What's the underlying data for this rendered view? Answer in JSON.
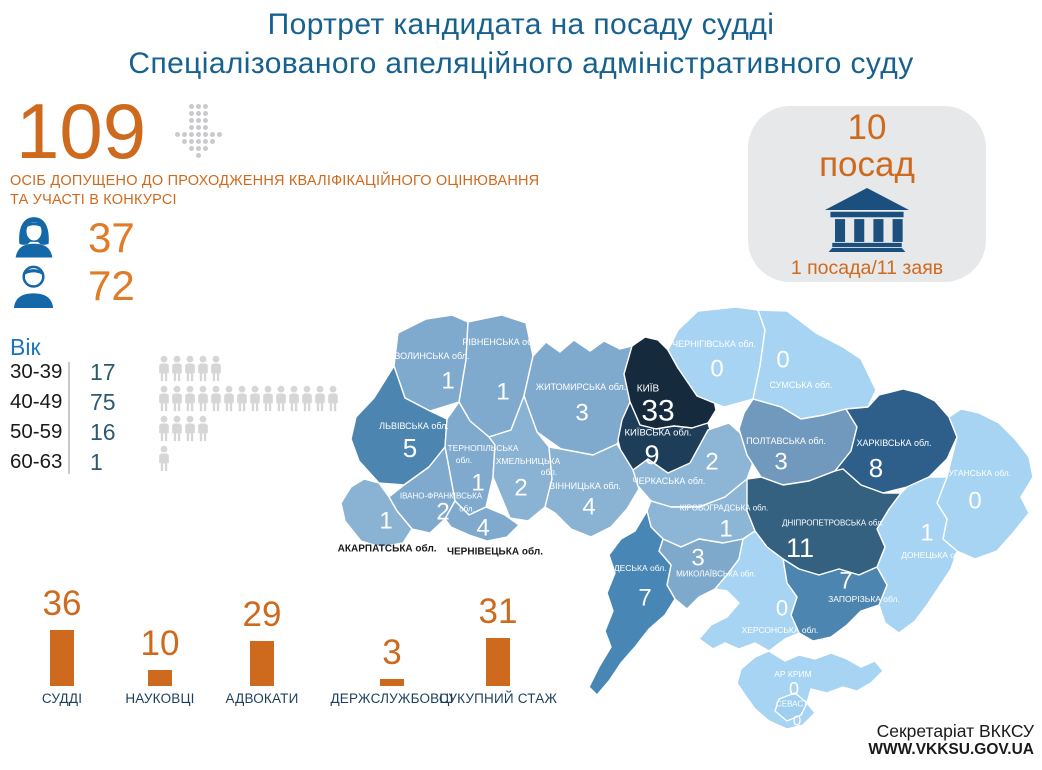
{
  "title": {
    "line1": "Портрет кандидата на посаду судді",
    "line2": "Спеціалізованого апеляційного адміністративного суду"
  },
  "admitted": {
    "count": "109",
    "caption_line1": "ОСІБ ДОПУЩЕНО ДО ПРОХОДЖЕННЯ КВАЛІФІКАЦІЙНОГО ОЦІНЮВАННЯ",
    "caption_line2": "ТА УЧАСТІ В КОНКУРСІ"
  },
  "gender": {
    "female": "37",
    "male": "72",
    "female_icon": "woman-icon",
    "male_icon": "man-icon"
  },
  "age": {
    "label": "Вік"
  },
  "positions_box": {
    "number": "10",
    "word": "посад",
    "icon": "courthouse-icon",
    "ratio": "1 посада/11 заяв"
  },
  "footer": {
    "line1": "Секретаріат ВККСУ",
    "line2": "WWW.VKKSU.GOV.UA"
  },
  "colors": {
    "accent_orange": "#CE6A1E",
    "title_blue": "#17618F",
    "icon_blue": "#1568A8",
    "building_navy": "#1B4F7D",
    "age_value": "#2E5A70",
    "age_heading_blue": "#1C75BC",
    "bar_label_navy": "#1C3F5E",
    "pictogram_gray": "#D6D6D6",
    "box_bg": "#E7E8EA"
  },
  "chart_data": [
    {
      "type": "bar",
      "title": "",
      "categories": [
        "СУДДІ",
        "НАУКОВЦІ",
        "АДВОКАТИ",
        "ДЕРЖСЛУЖБОВЦІ",
        "СУКУПНИЙ СТАЖ"
      ],
      "values": [
        36,
        10,
        29,
        3,
        31
      ],
      "bar_color": "#CE6A1E",
      "value_labels_shown": true,
      "grid": false,
      "legend": false
    },
    {
      "type": "heatmap",
      "subtype": "choropleth-map-ukraine",
      "title": "",
      "regions": [
        {
          "id": "volyn",
          "name": "ВОЛИНСЬКА обл.",
          "value": "1",
          "color": "#7FAACD"
        },
        {
          "id": "rivne",
          "name": "РІВНЕНСЬКА обл.",
          "value": "1",
          "color": "#7FAACD"
        },
        {
          "id": "zhytomyr",
          "name": "ЖИТОМИРСЬКА обл.",
          "value": "3",
          "color": "#7FAACD"
        },
        {
          "id": "kyivCity",
          "name": "КИЇВ",
          "value": "33",
          "color": "#162A3D"
        },
        {
          "id": "kyivObl",
          "name": "КИЇВСЬКА обл.",
          "value": "9",
          "color": "#1E3D58"
        },
        {
          "id": "chernihiv",
          "name": "ЧЕРНІГІВСЬКА обл.",
          "value": "0",
          "color": "#A7D4F2"
        },
        {
          "id": "sumy",
          "name": "СУМСЬКА обл.",
          "value": "0",
          "color": "#A7D4F2"
        },
        {
          "id": "lviv",
          "name": "ЛЬВІВСЬКА обл.",
          "value": "5",
          "color": "#4C86B0"
        },
        {
          "id": "ternopil",
          "name": "ТЕРНОПІЛЬСЬКА",
          "name2": "обл.",
          "value": "1",
          "color": "#7FAACD"
        },
        {
          "id": "khmelnytskyi",
          "name": "ХМЕЛЬНИЦЬКА",
          "name2": "обл.",
          "value": "2",
          "color": "#89B2D3"
        },
        {
          "id": "ivano",
          "name": "ІВАНО-ФРАНКІВСЬКА",
          "name2": "обл.",
          "value": "2",
          "color": "#7FAACD"
        },
        {
          "id": "zakarpattia",
          "name": "ЗАКАРПАТСЬКА обл.",
          "value": "1",
          "color": "#8AB3D3",
          "label_color": "#1A1A1A"
        },
        {
          "id": "chernivtsi",
          "name": "ЧЕРНІВЕЦЬКА обл.",
          "value": "4",
          "color": "#7FAACD",
          "label_color": "#1A1A1A"
        },
        {
          "id": "vinnytsia",
          "name": "ВІННИЦЬКА обл.",
          "value": "4",
          "color": "#89B2D3"
        },
        {
          "id": "cherkasy",
          "name": "ЧЕРКАСЬКА обл.",
          "value": "2",
          "color": "#8DB6D6"
        },
        {
          "id": "poltava",
          "name": "ПОЛТАВСЬКА обл.",
          "value": "3",
          "color": "#7099BD"
        },
        {
          "id": "kharkiv",
          "name": "ХАРКІВСЬКА обл.",
          "value": "8",
          "color": "#2D5F8A"
        },
        {
          "id": "luhansk",
          "name": "ЛУГАНСЬКА обл.",
          "value": "0",
          "color": "#A7D4F2"
        },
        {
          "id": "donetsk",
          "name": "ДОНЕЦЬКА обл.",
          "value": "1",
          "color": "#A7D4F2"
        },
        {
          "id": "dnipro",
          "name": "ДНІПРОПЕТРОВСЬКА обл.",
          "value": "11",
          "color": "#33617F"
        },
        {
          "id": "zaporizhzhia",
          "name": "ЗАПОРІЗЬКА обл.",
          "value": "7",
          "color": "#4C86B0"
        },
        {
          "id": "kirovohrad",
          "name": "КІРОВОГРАДСЬКА обл.",
          "value": "1",
          "color": "#8DB6D6"
        },
        {
          "id": "mykolaiv",
          "name": "МИКОЛАЇВСЬКА обл.",
          "value": "3",
          "color": "#7FA9CB"
        },
        {
          "id": "odesa",
          "name": "ОДЕСЬКА обл.",
          "value": "7",
          "color": "#4887B5"
        },
        {
          "id": "kherson",
          "name": "ХЕРСОНСЬКА обл.",
          "value": "0",
          "color": "#A7D4F2"
        },
        {
          "id": "crimea",
          "name": "АР КРИМ",
          "value": "0",
          "color": "#A7D4F2"
        },
        {
          "id": "sevastopol",
          "name": "СЕВАСТОПОЛЬ",
          "value": "0",
          "color": "#9FCFEF"
        }
      ]
    },
    {
      "type": "bar",
      "subtype": "pictogram-rows",
      "title": "Вік",
      "categories": [
        "30-39",
        "40-49",
        "50-59",
        "60-63"
      ],
      "values": [
        17,
        75,
        16,
        1
      ],
      "icon_counts": [
        5,
        14,
        4,
        1
      ],
      "icon": "person-icon"
    }
  ]
}
